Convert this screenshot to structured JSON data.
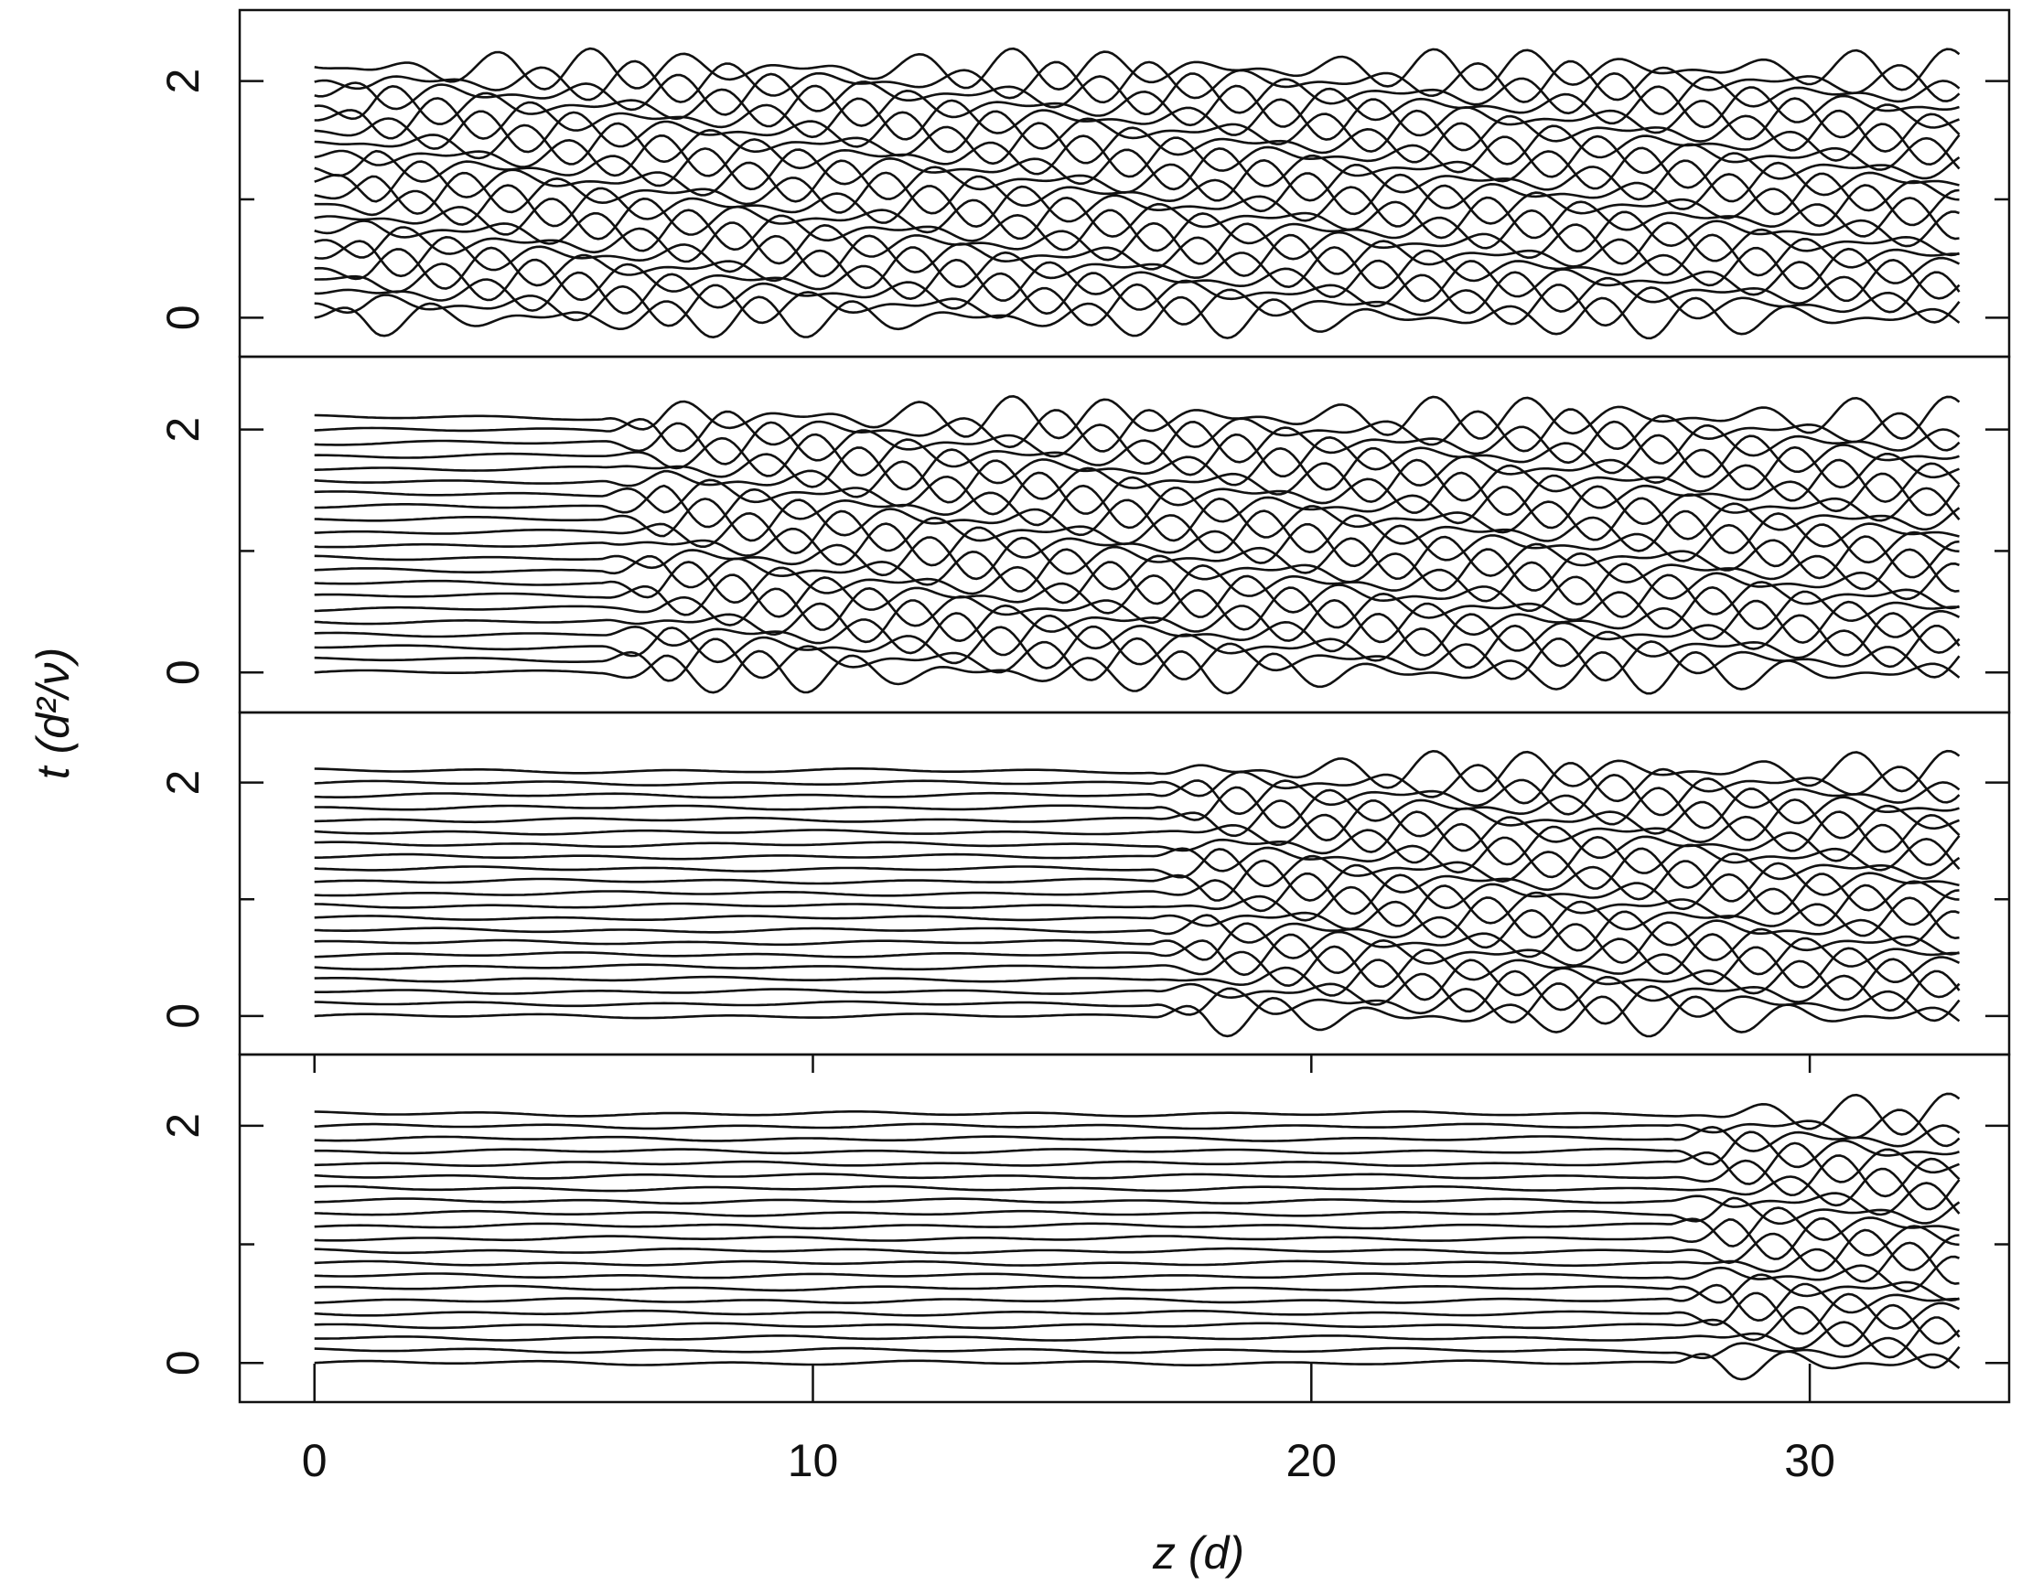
{
  "figure": {
    "x_label": "z (d)",
    "y_label": "t (d²/ν)"
  },
  "chart_data": [
    {
      "type": "spacetime",
      "xlim": [
        -1.5,
        34
      ],
      "ylim": [
        -0.33,
        2.6
      ],
      "yticks": [
        0,
        2
      ],
      "yminor": [
        1
      ],
      "z_span": [
        0,
        33
      ],
      "front_z": 0
    },
    {
      "type": "spacetime",
      "xlim": [
        -1.5,
        34
      ],
      "ylim": [
        -0.33,
        2.6
      ],
      "yticks": [
        0,
        2
      ],
      "yminor": [
        1
      ],
      "z_span": [
        0,
        33
      ],
      "front_z": 5.8
    },
    {
      "type": "spacetime",
      "xlim": [
        -1.5,
        34
      ],
      "ylim": [
        -0.33,
        2.6
      ],
      "yticks": [
        0,
        2
      ],
      "yminor": [
        1
      ],
      "z_span": [
        0,
        33
      ],
      "front_z": 16.8
    },
    {
      "type": "spacetime",
      "xlim": [
        -1.5,
        34
      ],
      "ylim": [
        -0.33,
        2.6
      ],
      "yticks": [
        0,
        2
      ],
      "yminor": [
        1
      ],
      "z_span": [
        0,
        33
      ],
      "front_z": 27.2,
      "xticks": [
        0,
        10,
        20,
        30
      ]
    }
  ]
}
